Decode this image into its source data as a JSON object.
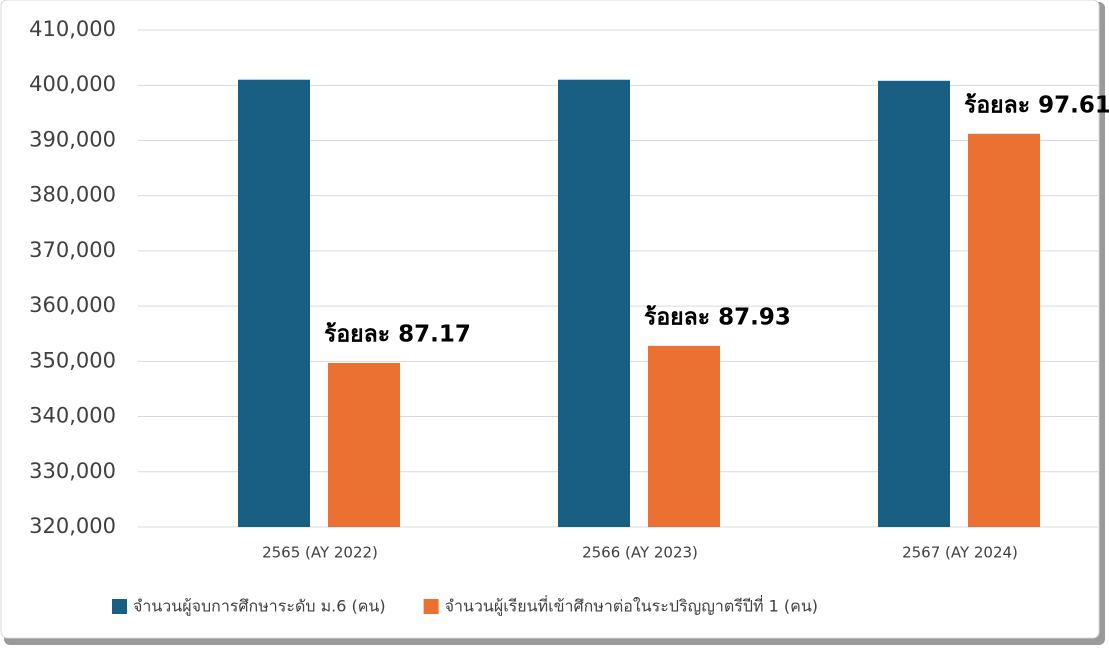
{
  "chart_data": {
    "type": "bar",
    "categories": [
      "2565 (AY 2022)",
      "2566 (AY 2023)",
      "2567 (AY 2024)"
    ],
    "series": [
      {
        "name": "จำนวนผู้จบการศึกษาระดับ ม.6 (คน)",
        "color": "#195e83",
        "values": [
          401000,
          401000,
          400800
        ]
      },
      {
        "name": "จำนวนผู้เรียนที่เข้าศึกษาต่อในระปริญญาตรีปีที่ 1 (คน)",
        "color": "#eb7132",
        "values": [
          349700,
          352800,
          391200
        ]
      }
    ],
    "annotations": [
      "ร้อยละ 87.17",
      "ร้อยละ 87.93",
      "ร้อยละ 97.61"
    ],
    "ylim": [
      320000,
      410000
    ],
    "yticks": [
      {
        "value": 320000,
        "label": "320,000"
      },
      {
        "value": 330000,
        "label": "330,000"
      },
      {
        "value": 340000,
        "label": "340,000"
      },
      {
        "value": 350000,
        "label": "350,000"
      },
      {
        "value": 360000,
        "label": "360,000"
      },
      {
        "value": 370000,
        "label": "370,000"
      },
      {
        "value": 380000,
        "label": "380,000"
      },
      {
        "value": 390000,
        "label": "390,000"
      },
      {
        "value": 400000,
        "label": "400,000"
      },
      {
        "value": 410000,
        "label": "410,000"
      }
    ],
    "grid": true,
    "legend": "bottom"
  }
}
